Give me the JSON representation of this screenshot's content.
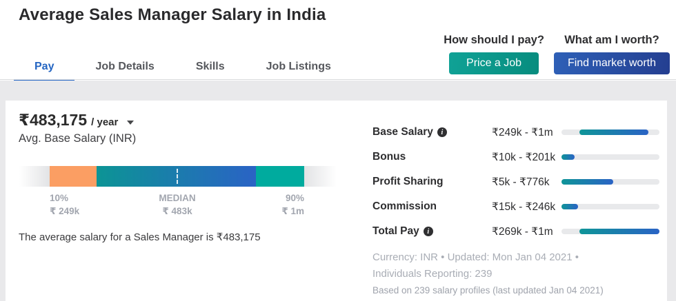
{
  "page": {
    "title": "Average Sales Manager Salary in India"
  },
  "header_actions": [
    {
      "question": "How should I pay?",
      "button": "Price a Job"
    },
    {
      "question": "What am I worth?",
      "button": "Find market worth"
    }
  ],
  "tabs": [
    {
      "label": "Pay",
      "active": true
    },
    {
      "label": "Job Details",
      "active": false
    },
    {
      "label": "Skills",
      "active": false
    },
    {
      "label": "Job Listings",
      "active": false
    }
  ],
  "salary_summary": {
    "amount": "₹483,175",
    "per": "/ year",
    "subtitle": "Avg. Base Salary (INR)",
    "description": "The average salary for a Sales Manager is ₹483,175"
  },
  "distribution": {
    "percentiles": [
      {
        "label": "10%",
        "value": "₹ 249k"
      },
      {
        "label": "MEDIAN",
        "value": "₹ 483k"
      },
      {
        "label": "90%",
        "value": "₹ 1m"
      }
    ]
  },
  "chart_data": [
    {
      "type": "bar",
      "title": "Base salary percentile range (INR)",
      "categories": [
        "10%",
        "MEDIAN",
        "90%"
      ],
      "values": [
        249000,
        483000,
        1000000
      ],
      "xlabel": "",
      "ylabel": "INR"
    },
    {
      "type": "bar",
      "title": "Compensation components range (INR)",
      "categories": [
        "Base Salary",
        "Bonus",
        "Profit Sharing",
        "Commission",
        "Total Pay"
      ],
      "series": [
        {
          "name": "min",
          "values": [
            249000,
            10000,
            5000,
            15000,
            269000
          ]
        },
        {
          "name": "max",
          "values": [
            1000000,
            201000,
            776000,
            246000,
            1000000
          ]
        }
      ]
    }
  ],
  "compensation_rows": [
    {
      "label": "Base Salary",
      "info": true,
      "range": "₹249k - ₹1m",
      "bar": {
        "start": 18,
        "end": 88.5
      }
    },
    {
      "label": "Bonus",
      "info": false,
      "range": "₹10k - ₹201k",
      "bar": {
        "start": 0,
        "end": 13.5
      }
    },
    {
      "label": "Profit Sharing",
      "info": false,
      "range": "₹5k - ₹776k",
      "bar": {
        "start": 0,
        "end": 53
      }
    },
    {
      "label": "Commission",
      "info": false,
      "range": "₹15k - ₹246k",
      "bar": {
        "start": 0,
        "end": 17
      }
    },
    {
      "label": "Total Pay",
      "info": true,
      "range": "₹269k - ₹1m",
      "bar": {
        "start": 18,
        "end": 100
      }
    }
  ],
  "footer": {
    "line1": "Currency: INR • Updated: Mon Jan 04 2021 •",
    "line2": "Individuals Reporting: 239",
    "line3": "Based on 239 salary profiles (last updated Jan 04 2021)"
  },
  "colors": {
    "active_tab_blue": "#2465c2",
    "button_teal": "#0a9a8c",
    "button_blue": "#2a54a8",
    "bar_orange": "#fb9e63",
    "bar_teal": "#00ab9e",
    "bar_gradient_start": "#0c9495",
    "bar_gradient_end": "#2a63c5",
    "track_gray": "#e8e9eb",
    "band_gray": "#e9e9eb",
    "muted_text": "#a2a6af"
  }
}
